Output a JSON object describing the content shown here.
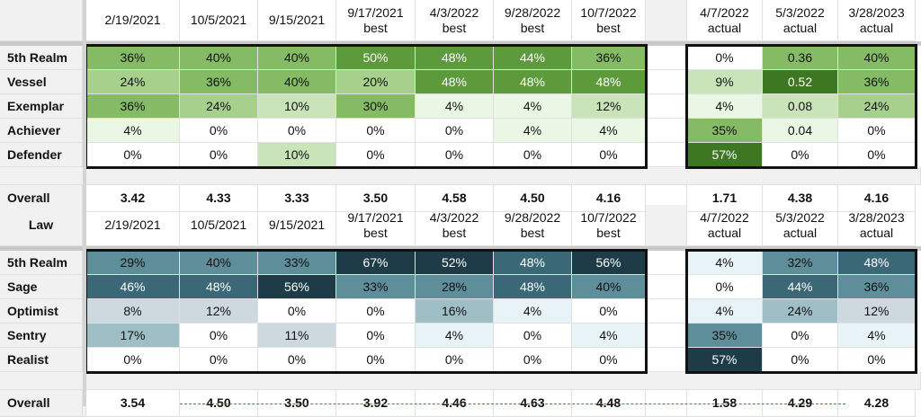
{
  "columns": [
    {
      "date": "2/19/2021",
      "sub": ""
    },
    {
      "date": "10/5/2021",
      "sub": ""
    },
    {
      "date": "9/15/2021",
      "sub": ""
    },
    {
      "date": "9/17/2021",
      "sub": "best"
    },
    {
      "date": "4/3/2022",
      "sub": "best"
    },
    {
      "date": "9/28/2022",
      "sub": "best"
    },
    {
      "date": "10/7/2022",
      "sub": "best"
    },
    {
      "date": "4/7/2022",
      "sub": "actual"
    },
    {
      "date": "5/3/2022",
      "sub": "actual"
    },
    {
      "date": "3/28/2023",
      "sub": "actual"
    }
  ],
  "overall_label": "Overall",
  "sections": [
    {
      "name": "",
      "palette": "green",
      "rows": [
        {
          "label": "5th Realm",
          "values": [
            "36%",
            "40%",
            "40%",
            "50%",
            "48%",
            "44%",
            "36%",
            "0%",
            "0.36",
            "40%"
          ]
        },
        {
          "label": "Vessel",
          "values": [
            "24%",
            "36%",
            "40%",
            "20%",
            "48%",
            "48%",
            "48%",
            "9%",
            "0.52",
            "36%"
          ]
        },
        {
          "label": "Exemplar",
          "values": [
            "36%",
            "24%",
            "10%",
            "30%",
            "4%",
            "4%",
            "12%",
            "4%",
            "0.08",
            "24%"
          ]
        },
        {
          "label": "Achiever",
          "values": [
            "4%",
            "0%",
            "0%",
            "0%",
            "0%",
            "4%",
            "4%",
            "35%",
            "0.04",
            "0%"
          ]
        },
        {
          "label": "Defender",
          "values": [
            "0%",
            "0%",
            "10%",
            "0%",
            "0%",
            "0%",
            "0%",
            "57%",
            "0%",
            "0%"
          ]
        }
      ],
      "overall": [
        "3.42",
        "4.33",
        "3.33",
        "3.50",
        "4.58",
        "4.50",
        "4.16",
        "1.71",
        "4.38",
        "4.16"
      ]
    },
    {
      "name": "Law",
      "palette": "teal",
      "rows": [
        {
          "label": "5th Realm",
          "values": [
            "29%",
            "40%",
            "33%",
            "67%",
            "52%",
            "48%",
            "56%",
            "4%",
            "32%",
            "48%"
          ]
        },
        {
          "label": "Sage",
          "values": [
            "46%",
            "48%",
            "56%",
            "33%",
            "28%",
            "48%",
            "40%",
            "0%",
            "44%",
            "36%"
          ]
        },
        {
          "label": "Optimist",
          "values": [
            "8%",
            "12%",
            "0%",
            "0%",
            "16%",
            "4%",
            "0%",
            "4%",
            "24%",
            "12%"
          ]
        },
        {
          "label": "Sentry",
          "values": [
            "17%",
            "0%",
            "11%",
            "0%",
            "4%",
            "0%",
            "4%",
            "35%",
            "0%",
            "4%"
          ]
        },
        {
          "label": "Realist",
          "values": [
            "0%",
            "0%",
            "0%",
            "0%",
            "0%",
            "0%",
            "0%",
            "57%",
            "0%",
            "0%"
          ]
        }
      ],
      "overall": [
        "3.54",
        "4.50",
        "3.50",
        "3.92",
        "4.46",
        "4.63",
        "4.48",
        "1.58",
        "4.29",
        "4.28"
      ]
    }
  ],
  "colors": {
    "green_scale": [
      "#ffffff",
      "#eaf7e4",
      "#c9e4b8",
      "#a8d08d",
      "#84bb64",
      "#5d9a3c",
      "#3d7722"
    ],
    "teal_scale": [
      "#ffffff",
      "#e8f3f8",
      "#cdd9de",
      "#9fbfc6",
      "#5d8e99",
      "#3b6876",
      "#1d3c48"
    ],
    "light_text": "#ffffff",
    "border": "#111111",
    "section_bg": "#f1f1f1"
  }
}
